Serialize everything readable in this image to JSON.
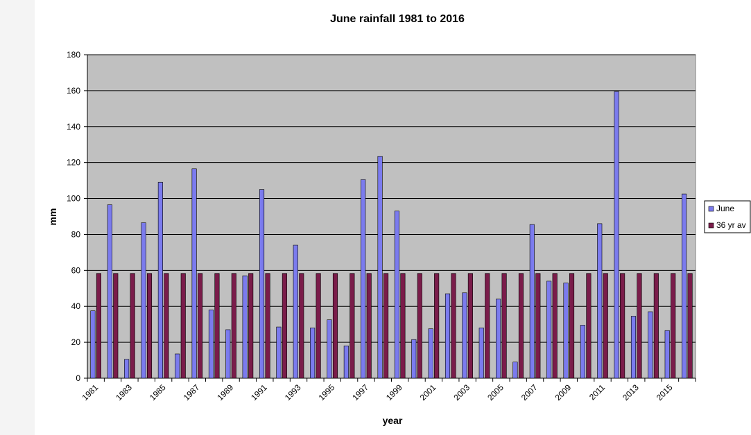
{
  "chart_data": {
    "type": "bar",
    "title": "June rainfall 1981 to 2016",
    "xlabel": "year",
    "ylabel": "mm",
    "ylim": [
      0,
      180
    ],
    "yticks": [
      0,
      20,
      40,
      60,
      80,
      100,
      120,
      140,
      160,
      180
    ],
    "grid": true,
    "legend": "right",
    "categories": [
      "1981",
      "1982",
      "1983",
      "1984",
      "1985",
      "1986",
      "1987",
      "1988",
      "1989",
      "1990",
      "1991",
      "1992",
      "1993",
      "1994",
      "1995",
      "1996",
      "1997",
      "1998",
      "1999",
      "2000",
      "2001",
      "2002",
      "2003",
      "2004",
      "2005",
      "2006",
      "2007",
      "2008",
      "2009",
      "2010",
      "2011",
      "2012",
      "2013",
      "2014",
      "2015",
      "2016"
    ],
    "xtick_labels": [
      "1981",
      "1983",
      "1985",
      "1987",
      "1989",
      "1991",
      "1993",
      "1995",
      "1997",
      "1999",
      "2001",
      "2003",
      "2005",
      "2007",
      "2009",
      "2011",
      "2013",
      "2015"
    ],
    "series": [
      {
        "name": "June",
        "color": "#7b7bee",
        "values": [
          37.5,
          96.5,
          10.5,
          86.5,
          109,
          13.5,
          116.5,
          38,
          27,
          57,
          105,
          28.5,
          74,
          28,
          32.5,
          18,
          110.5,
          123.5,
          93,
          21.5,
          27.5,
          47,
          47.5,
          28,
          44,
          9,
          85.5,
          54,
          53,
          29.5,
          86,
          159.5,
          34.5,
          37,
          26.5,
          102.5
        ]
      },
      {
        "name": "36 yr av",
        "color": "#7a1c4a",
        "values": [
          58.3,
          58.3,
          58.3,
          58.3,
          58.3,
          58.3,
          58.3,
          58.3,
          58.3,
          58.3,
          58.3,
          58.3,
          58.3,
          58.3,
          58.3,
          58.3,
          58.3,
          58.3,
          58.3,
          58.3,
          58.3,
          58.3,
          58.3,
          58.3,
          58.3,
          58.3,
          58.3,
          58.3,
          58.3,
          58.3,
          58.3,
          58.3,
          58.3,
          58.3,
          58.3,
          58.3
        ]
      }
    ],
    "plot_background": "#c0c0c0"
  }
}
